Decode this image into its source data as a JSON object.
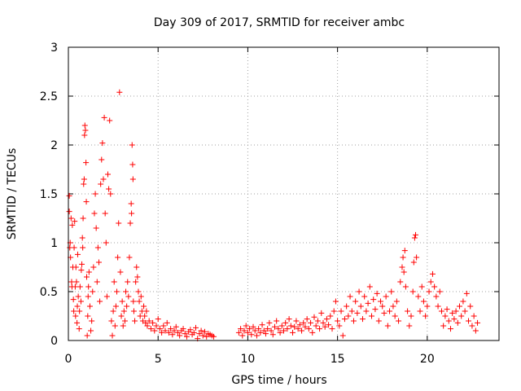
{
  "chart_data": {
    "type": "scatter",
    "title": "Day 309 of 2017, SRMTID for receiver ambc",
    "xlabel": "GPS time / hours",
    "ylabel": "SRMTID / TECUs",
    "xlim": [
      0,
      24
    ],
    "ylim": [
      0,
      3
    ],
    "xticks": [
      0,
      5,
      10,
      15,
      20
    ],
    "yticks": [
      0,
      0.5,
      1,
      1.5,
      2,
      2.5,
      3
    ],
    "xtick_labels": [
      "0",
      "5",
      "10",
      "15",
      "20"
    ],
    "ytick_labels": [
      "0",
      "0.5",
      "1",
      "1.5",
      "2",
      "2.5",
      "3"
    ],
    "grid": true,
    "marker": "plus",
    "series": [
      {
        "color": "#ff0000",
        "points": [
          [
            0.05,
            1.48
          ],
          [
            0.05,
            1.32
          ],
          [
            0.08,
            0.95
          ],
          [
            0.1,
            1.0
          ],
          [
            0.12,
            0.85
          ],
          [
            0.15,
            1.25
          ],
          [
            0.18,
            0.6
          ],
          [
            0.2,
            0.55
          ],
          [
            0.22,
            1.18
          ],
          [
            0.25,
            0.75
          ],
          [
            0.28,
            0.42
          ],
          [
            0.3,
            0.3
          ],
          [
            0.32,
            0.95
          ],
          [
            0.35,
            1.22
          ],
          [
            0.38,
            0.55
          ],
          [
            0.4,
            0.25
          ],
          [
            0.42,
            0.75
          ],
          [
            0.45,
            0.6
          ],
          [
            0.48,
            0.18
          ],
          [
            0.5,
            0.35
          ],
          [
            0.52,
            0.88
          ],
          [
            0.55,
            0.45
          ],
          [
            0.6,
            0.12
          ],
          [
            0.62,
            0.3
          ],
          [
            0.65,
            0.55
          ],
          [
            0.7,
            0.4
          ],
          [
            0.72,
            0.72
          ],
          [
            0.75,
            0.78
          ],
          [
            0.78,
            1.05
          ],
          [
            0.8,
            0.95
          ],
          [
            0.82,
            1.25
          ],
          [
            0.85,
            1.6
          ],
          [
            0.88,
            1.65
          ],
          [
            0.9,
            2.1
          ],
          [
            0.92,
            2.2
          ],
          [
            0.95,
            2.15
          ],
          [
            0.98,
            1.82
          ],
          [
            1.0,
            1.42
          ],
          [
            1.02,
            0.65
          ],
          [
            1.05,
            0.05
          ],
          [
            1.08,
            0.25
          ],
          [
            1.1,
            0.45
          ],
          [
            1.12,
            0.55
          ],
          [
            1.15,
            0.7
          ],
          [
            1.2,
            0.35
          ],
          [
            1.25,
            0.1
          ],
          [
            1.3,
            0.2
          ],
          [
            1.35,
            0.5
          ],
          [
            1.4,
            0.75
          ],
          [
            1.45,
            1.3
          ],
          [
            1.5,
            1.5
          ],
          [
            1.55,
            1.15
          ],
          [
            1.6,
            0.6
          ],
          [
            1.65,
            0.95
          ],
          [
            1.7,
            0.8
          ],
          [
            1.75,
            0.4
          ],
          [
            1.8,
            1.6
          ],
          [
            1.85,
            1.85
          ],
          [
            1.9,
            2.02
          ],
          [
            1.95,
            1.65
          ],
          [
            2.0,
            2.28
          ],
          [
            2.05,
            1.3
          ],
          [
            2.1,
            1.0
          ],
          [
            2.15,
            0.45
          ],
          [
            2.2,
            1.7
          ],
          [
            2.25,
            1.55
          ],
          [
            2.3,
            2.25
          ],
          [
            2.35,
            1.5
          ],
          [
            2.4,
            0.2
          ],
          [
            2.45,
            0.05
          ],
          [
            2.5,
            0.3
          ],
          [
            2.55,
            0.6
          ],
          [
            2.6,
            0.15
          ],
          [
            2.65,
            0.35
          ],
          [
            2.7,
            0.5
          ],
          [
            2.75,
            0.85
          ],
          [
            2.8,
            1.2
          ],
          [
            2.85,
            2.54
          ],
          [
            2.9,
            0.7
          ],
          [
            2.95,
            0.25
          ],
          [
            3.0,
            0.4
          ],
          [
            3.05,
            0.15
          ],
          [
            3.1,
            0.3
          ],
          [
            3.15,
            0.2
          ],
          [
            3.2,
            0.5
          ],
          [
            3.25,
            0.35
          ],
          [
            3.3,
            0.6
          ],
          [
            3.35,
            0.45
          ],
          [
            3.4,
            0.85
          ],
          [
            3.45,
            1.2
          ],
          [
            3.5,
            1.4
          ],
          [
            3.52,
            1.3
          ],
          [
            3.55,
            2.0
          ],
          [
            3.58,
            1.8
          ],
          [
            3.6,
            1.65
          ],
          [
            3.62,
            0.4
          ],
          [
            3.65,
            0.3
          ],
          [
            3.7,
            0.2
          ],
          [
            3.75,
            0.6
          ],
          [
            3.8,
            0.75
          ],
          [
            3.85,
            0.65
          ],
          [
            3.9,
            0.5
          ],
          [
            3.95,
            0.4
          ],
          [
            4.0,
            0.25
          ],
          [
            4.05,
            0.45
          ],
          [
            4.1,
            0.3
          ],
          [
            4.15,
            0.2
          ],
          [
            4.2,
            0.35
          ],
          [
            4.25,
            0.25
          ],
          [
            4.3,
            0.18
          ],
          [
            4.35,
            0.3
          ],
          [
            4.4,
            0.15
          ],
          [
            4.5,
            0.2
          ],
          [
            4.6,
            0.12
          ],
          [
            4.7,
            0.18
          ],
          [
            4.8,
            0.1
          ],
          [
            4.9,
            0.15
          ],
          [
            5.0,
            0.22
          ],
          [
            5.1,
            0.12
          ],
          [
            5.2,
            0.08
          ],
          [
            5.3,
            0.15
          ],
          [
            5.4,
            0.1
          ],
          [
            5.5,
            0.18
          ],
          [
            5.6,
            0.08
          ],
          [
            5.7,
            0.12
          ],
          [
            5.8,
            0.06
          ],
          [
            5.9,
            0.1
          ],
          [
            6.0,
            0.14
          ],
          [
            6.1,
            0.08
          ],
          [
            6.2,
            0.05
          ],
          [
            6.3,
            0.1
          ],
          [
            6.4,
            0.12
          ],
          [
            6.5,
            0.07
          ],
          [
            6.6,
            0.04
          ],
          [
            6.7,
            0.09
          ],
          [
            6.8,
            0.11
          ],
          [
            6.9,
            0.06
          ],
          [
            7.0,
            0.08
          ],
          [
            7.1,
            0.13
          ],
          [
            7.2,
            0.02
          ],
          [
            7.3,
            0.07
          ],
          [
            7.4,
            0.1
          ],
          [
            7.5,
            0.05
          ],
          [
            7.6,
            0.09
          ],
          [
            7.7,
            0.04
          ],
          [
            7.8,
            0.07
          ],
          [
            7.9,
            0.06
          ],
          [
            8.0,
            0.05
          ],
          [
            8.1,
            0.04
          ],
          [
            9.5,
            0.08
          ],
          [
            9.6,
            0.12
          ],
          [
            9.7,
            0.05
          ],
          [
            9.8,
            0.1
          ],
          [
            9.9,
            0.15
          ],
          [
            10.0,
            0.08
          ],
          [
            10.1,
            0.12
          ],
          [
            10.2,
            0.06
          ],
          [
            10.3,
            0.14
          ],
          [
            10.4,
            0.1
          ],
          [
            10.5,
            0.05
          ],
          [
            10.6,
            0.12
          ],
          [
            10.7,
            0.08
          ],
          [
            10.8,
            0.16
          ],
          [
            10.9,
            0.1
          ],
          [
            11.0,
            0.07
          ],
          [
            11.1,
            0.12
          ],
          [
            11.2,
            0.18
          ],
          [
            11.3,
            0.1
          ],
          [
            11.4,
            0.06
          ],
          [
            11.5,
            0.14
          ],
          [
            11.6,
            0.2
          ],
          [
            11.7,
            0.12
          ],
          [
            11.8,
            0.08
          ],
          [
            11.9,
            0.15
          ],
          [
            12.0,
            0.1
          ],
          [
            12.1,
            0.18
          ],
          [
            12.2,
            0.12
          ],
          [
            12.3,
            0.22
          ],
          [
            12.4,
            0.15
          ],
          [
            12.5,
            0.08
          ],
          [
            12.6,
            0.14
          ],
          [
            12.7,
            0.2
          ],
          [
            12.8,
            0.12
          ],
          [
            12.9,
            0.16
          ],
          [
            13.0,
            0.1
          ],
          [
            13.1,
            0.18
          ],
          [
            13.2,
            0.14
          ],
          [
            13.3,
            0.22
          ],
          [
            13.4,
            0.12
          ],
          [
            13.5,
            0.18
          ],
          [
            13.6,
            0.08
          ],
          [
            13.7,
            0.24
          ],
          [
            13.8,
            0.15
          ],
          [
            13.9,
            0.2
          ],
          [
            14.0,
            0.12
          ],
          [
            14.1,
            0.28
          ],
          [
            14.2,
            0.18
          ],
          [
            14.3,
            0.14
          ],
          [
            14.4,
            0.22
          ],
          [
            14.5,
            0.16
          ],
          [
            14.6,
            0.25
          ],
          [
            14.7,
            0.12
          ],
          [
            14.8,
            0.3
          ],
          [
            14.9,
            0.4
          ],
          [
            15.0,
            0.2
          ],
          [
            15.1,
            0.15
          ],
          [
            15.2,
            0.3
          ],
          [
            15.3,
            0.05
          ],
          [
            15.4,
            0.22
          ],
          [
            15.5,
            0.35
          ],
          [
            15.6,
            0.25
          ],
          [
            15.7,
            0.45
          ],
          [
            15.8,
            0.3
          ],
          [
            15.9,
            0.2
          ],
          [
            16.0,
            0.4
          ],
          [
            16.1,
            0.28
          ],
          [
            16.2,
            0.5
          ],
          [
            16.3,
            0.35
          ],
          [
            16.4,
            0.22
          ],
          [
            16.5,
            0.45
          ],
          [
            16.6,
            0.3
          ],
          [
            16.7,
            0.38
          ],
          [
            16.8,
            0.55
          ],
          [
            16.9,
            0.25
          ],
          [
            17.0,
            0.42
          ],
          [
            17.1,
            0.32
          ],
          [
            17.2,
            0.48
          ],
          [
            17.3,
            0.2
          ],
          [
            17.4,
            0.4
          ],
          [
            17.5,
            0.35
          ],
          [
            17.6,
            0.28
          ],
          [
            17.7,
            0.45
          ],
          [
            17.8,
            0.15
          ],
          [
            17.9,
            0.3
          ],
          [
            18.0,
            0.5
          ],
          [
            18.1,
            0.35
          ],
          [
            18.2,
            0.25
          ],
          [
            18.3,
            0.4
          ],
          [
            18.4,
            0.2
          ],
          [
            18.5,
            0.6
          ],
          [
            18.6,
            0.75
          ],
          [
            18.65,
            0.85
          ],
          [
            18.7,
            0.7
          ],
          [
            18.75,
            0.92
          ],
          [
            18.8,
            0.55
          ],
          [
            18.9,
            0.3
          ],
          [
            19.0,
            0.15
          ],
          [
            19.1,
            0.25
          ],
          [
            19.2,
            0.5
          ],
          [
            19.25,
            0.8
          ],
          [
            19.3,
            1.05
          ],
          [
            19.35,
            1.08
          ],
          [
            19.4,
            0.85
          ],
          [
            19.5,
            0.45
          ],
          [
            19.6,
            0.3
          ],
          [
            19.7,
            0.55
          ],
          [
            19.8,
            0.4
          ],
          [
            19.9,
            0.25
          ],
          [
            20.0,
            0.35
          ],
          [
            20.1,
            0.5
          ],
          [
            20.2,
            0.6
          ],
          [
            20.3,
            0.68
          ],
          [
            20.4,
            0.55
          ],
          [
            20.5,
            0.45
          ],
          [
            20.6,
            0.35
          ],
          [
            20.7,
            0.5
          ],
          [
            20.8,
            0.3
          ],
          [
            20.9,
            0.15
          ],
          [
            21.0,
            0.25
          ],
          [
            21.1,
            0.32
          ],
          [
            21.2,
            0.2
          ],
          [
            21.3,
            0.12
          ],
          [
            21.4,
            0.28
          ],
          [
            21.5,
            0.22
          ],
          [
            21.6,
            0.3
          ],
          [
            21.7,
            0.18
          ],
          [
            21.8,
            0.35
          ],
          [
            21.9,
            0.25
          ],
          [
            22.0,
            0.4
          ],
          [
            22.1,
            0.3
          ],
          [
            22.2,
            0.48
          ],
          [
            22.3,
            0.2
          ],
          [
            22.4,
            0.35
          ],
          [
            22.5,
            0.15
          ],
          [
            22.6,
            0.25
          ],
          [
            22.7,
            0.1
          ],
          [
            22.8,
            0.18
          ]
        ]
      }
    ]
  }
}
